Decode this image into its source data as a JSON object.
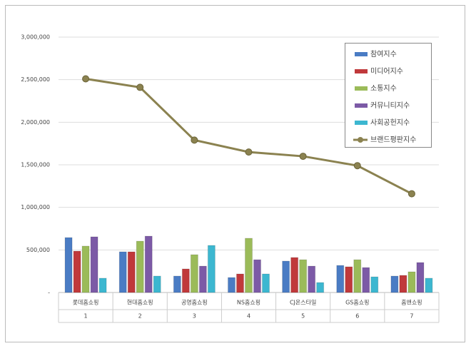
{
  "chart_data": {
    "type": "bar-line",
    "categories": [
      "롯데홈쇼핑",
      "현대홈쇼핑",
      "공영홈쇼핑",
      "NS홈쇼핑",
      "CJ온스타일",
      "GS홈쇼핑",
      "홈앤쇼핑"
    ],
    "category_numbers": [
      "1",
      "2",
      "3",
      "4",
      "5",
      "6",
      "7"
    ],
    "series": [
      {
        "name": "참여지수",
        "color": "#4a7cc4",
        "kind": "bar",
        "values": [
          645000,
          478000,
          193000,
          176000,
          369000,
          318000,
          193000
        ]
      },
      {
        "name": "미디어지수",
        "color": "#c0393b",
        "kind": "bar",
        "values": [
          486000,
          478000,
          277000,
          218000,
          411000,
          302000,
          201000
        ]
      },
      {
        "name": "소통지수",
        "color": "#9bbb59",
        "kind": "bar",
        "values": [
          545000,
          603000,
          444000,
          637000,
          385000,
          385000,
          243000
        ]
      },
      {
        "name": "커뮤니티지수",
        "color": "#7c5aa6",
        "kind": "bar",
        "values": [
          654000,
          662000,
          310000,
          385000,
          310000,
          293000,
          352000
        ]
      },
      {
        "name": "사회공헌지수",
        "color": "#3cb7d0",
        "kind": "bar",
        "values": [
          168000,
          193000,
          553000,
          218000,
          117000,
          184000,
          168000
        ]
      },
      {
        "name": "브랜드평판지수",
        "color": "#8b8250",
        "kind": "line",
        "values": [
          2510000,
          2410000,
          1790000,
          1650000,
          1600000,
          1490000,
          1160000
        ]
      }
    ],
    "ylim": [
      0,
      3000000
    ],
    "yticks": [
      {
        "value": 0,
        "label": "-"
      },
      {
        "value": 500000,
        "label": "500,000"
      },
      {
        "value": 1000000,
        "label": "1,000,000"
      },
      {
        "value": 1500000,
        "label": "1,500,000"
      },
      {
        "value": 2000000,
        "label": "2,000,000"
      },
      {
        "value": 2500000,
        "label": "2,500,000"
      },
      {
        "value": 3000000,
        "label": "3,000,000"
      }
    ],
    "grid": true,
    "legend": "top-right"
  }
}
